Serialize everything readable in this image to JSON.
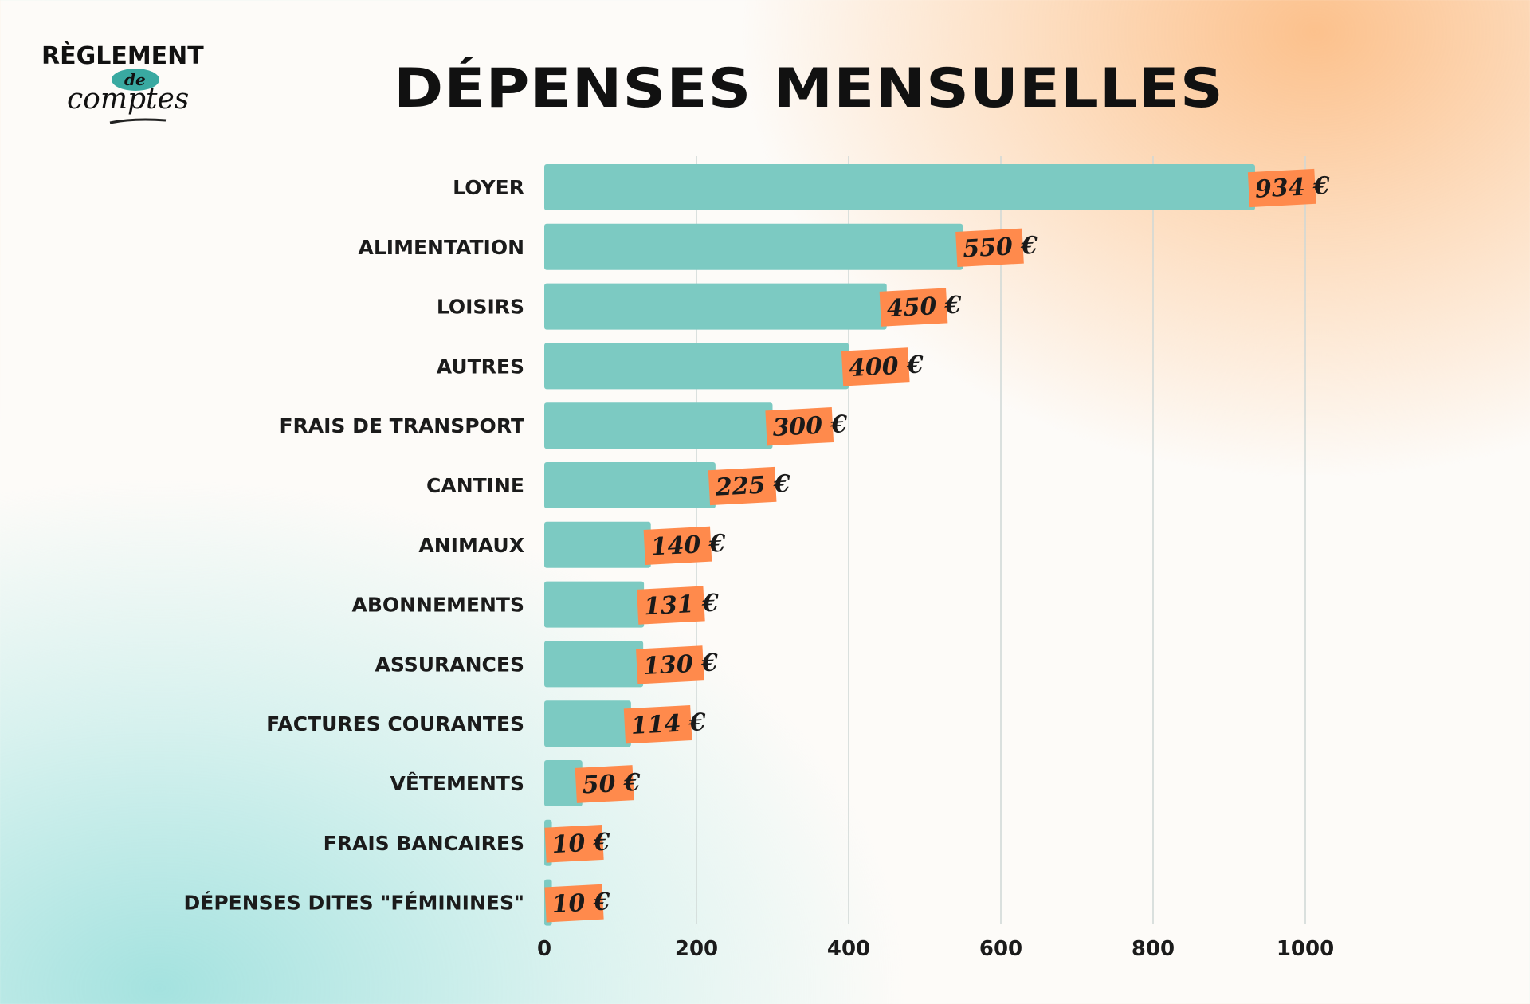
{
  "logo": {
    "line1": "RÈGLEMENT",
    "line2": "de",
    "line3": "comptes"
  },
  "colors": {
    "bar": "#7ccac2",
    "label_bg": "#ff8a4c",
    "grid": "#cfd8d6",
    "text": "#1b1b1b"
  },
  "chart_data": {
    "type": "bar",
    "orientation": "horizontal",
    "title": "DÉPENSES MENSUELLES",
    "categories": [
      "LOYER",
      "ALIMENTATION",
      "LOISIRS",
      "AUTRES",
      "FRAIS DE TRANSPORT",
      "CANTINE",
      "ANIMAUX",
      "ABONNEMENTS",
      "ASSURANCES",
      "FACTURES COURANTES",
      "VÊTEMENTS",
      "FRAIS BANCAIRES",
      "DÉPENSES DITES \"FÉMININES\""
    ],
    "values": [
      934,
      550,
      450,
      400,
      300,
      225,
      140,
      131,
      130,
      114,
      50,
      10,
      10
    ],
    "value_labels": [
      "934 €",
      "550 €",
      "450 €",
      "400 €",
      "300 €",
      "225 €",
      "140 €",
      "131 €",
      "130 €",
      "114 €",
      "50 €",
      "10 €",
      "10 €"
    ],
    "xticks": [
      0,
      200,
      400,
      600,
      800,
      1000
    ],
    "xlim": [
      0,
      1000
    ],
    "grid": true,
    "xlabel": "",
    "ylabel": ""
  }
}
